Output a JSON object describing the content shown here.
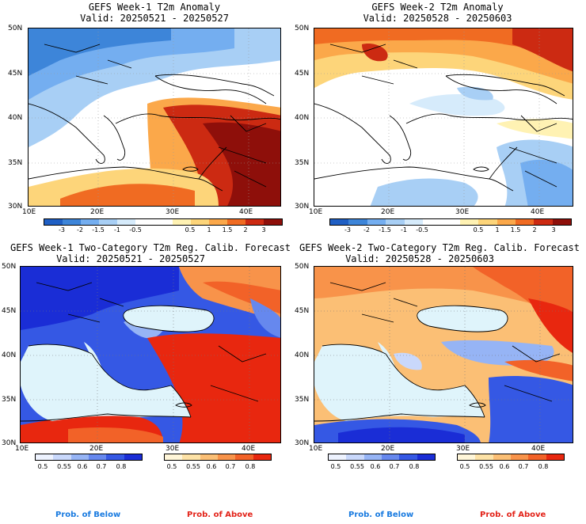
{
  "panels": [
    {
      "title": "GEFS Week-1 T2m Anomaly",
      "valid": "Valid: 20250521 - 20250527",
      "kind": "anomaly"
    },
    {
      "title": "GEFS Week-2 T2m Anomaly",
      "valid": "Valid: 20250528 - 20250603",
      "kind": "anomaly"
    },
    {
      "title": "GEFS Week-1 Two-Category T2m Reg. Calib. Forecast",
      "valid": "Valid: 20250521 - 20250527",
      "kind": "prob"
    },
    {
      "title": "GEFS Week-2 Two-Category T2m Reg. Calib. Forecast",
      "valid": "Valid: 20250528 - 20250603",
      "kind": "prob"
    }
  ],
  "axes": {
    "lat_labels": [
      "50N",
      "45N",
      "40N",
      "35N",
      "30N"
    ],
    "lon_labels_top": [
      "10E",
      "20E",
      "30E",
      "40E"
    ],
    "lon_labels_bottom": [
      "10E",
      "20E",
      "30E",
      "40E"
    ]
  },
  "anomaly_colorbar": {
    "colors": [
      "#1f5fc4",
      "#3d85d9",
      "#74aef0",
      "#a8cff5",
      "#d6ebfb",
      "#ffffff",
      "#ffffff",
      "#fff2b3",
      "#fdd57a",
      "#fba84a",
      "#f06b22",
      "#cc2a12",
      "#8e0f0a"
    ],
    "ticks": [
      "-3",
      "-2",
      "-1.5",
      "-1",
      "-0.5",
      "0.5",
      "1",
      "1.5",
      "2",
      "3"
    ]
  },
  "prob_below_colorbar": {
    "colors": [
      "#eef3ff",
      "#c9d8fb",
      "#96b4f5",
      "#6688ee",
      "#3558e4",
      "#1a2dd6"
    ],
    "ticks": [
      "0.5",
      "0.55",
      "0.6",
      "0.7",
      "0.8"
    ]
  },
  "prob_above_colorbar": {
    "colors": [
      "#fff6d9",
      "#fde2a6",
      "#fbbf75",
      "#f8934a",
      "#f26228",
      "#e8270f"
    ],
    "ticks": [
      "0.5",
      "0.55",
      "0.6",
      "0.7",
      "0.8"
    ]
  },
  "legend": {
    "below_label": "Prob. of Below",
    "above_label": "Prob. of Above",
    "below_color": "#1a7be0",
    "above_color": "#e3241a"
  }
}
